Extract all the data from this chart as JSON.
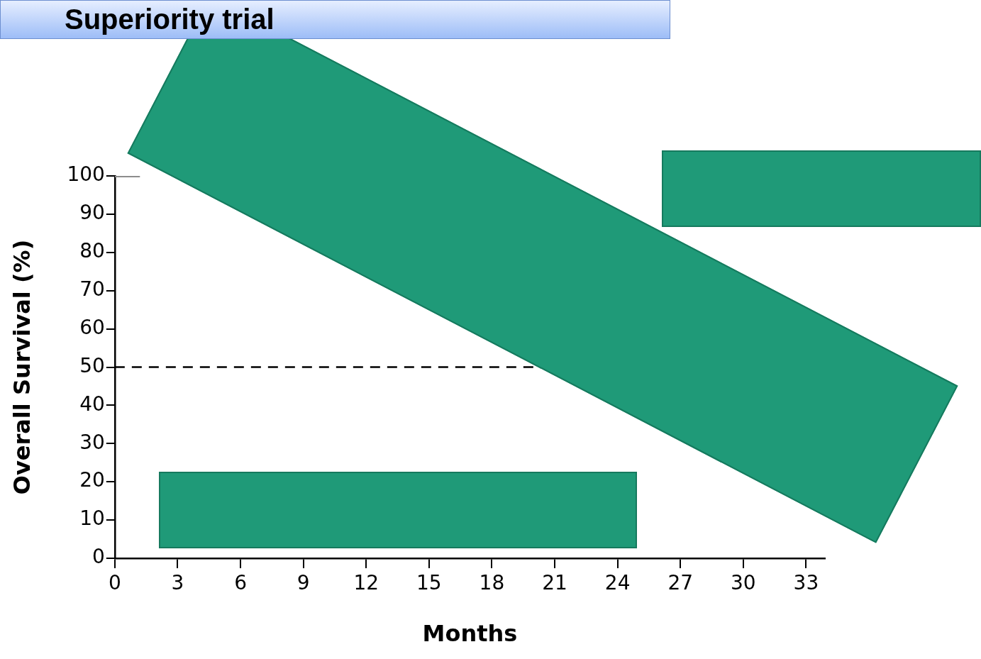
{
  "chart_data": {
    "type": "line",
    "title": "Superiority trial",
    "xlabel": "Months",
    "ylabel": "Overall Survival (%)",
    "series": [
      {
        "color": "#8c8c8c",
        "x": [
          0,
          1.2
        ],
        "values": [
          100,
          100
        ]
      }
    ],
    "xlim": [
      0,
      33.9
    ],
    "xticks": [
      0,
      3,
      6,
      9,
      12,
      15,
      18,
      21,
      24,
      27,
      30,
      33
    ],
    "ylim": [
      0,
      100
    ],
    "yticks": [
      0,
      10,
      20,
      30,
      40,
      50,
      60,
      70,
      80,
      90,
      100
    ],
    "ref_lines": [
      {
        "axis": "y",
        "value": 50,
        "color": "#000000",
        "line_style": "dashed"
      }
    ],
    "grid": false,
    "legend": false,
    "marker": "none",
    "line_style": "solid"
  }
}
